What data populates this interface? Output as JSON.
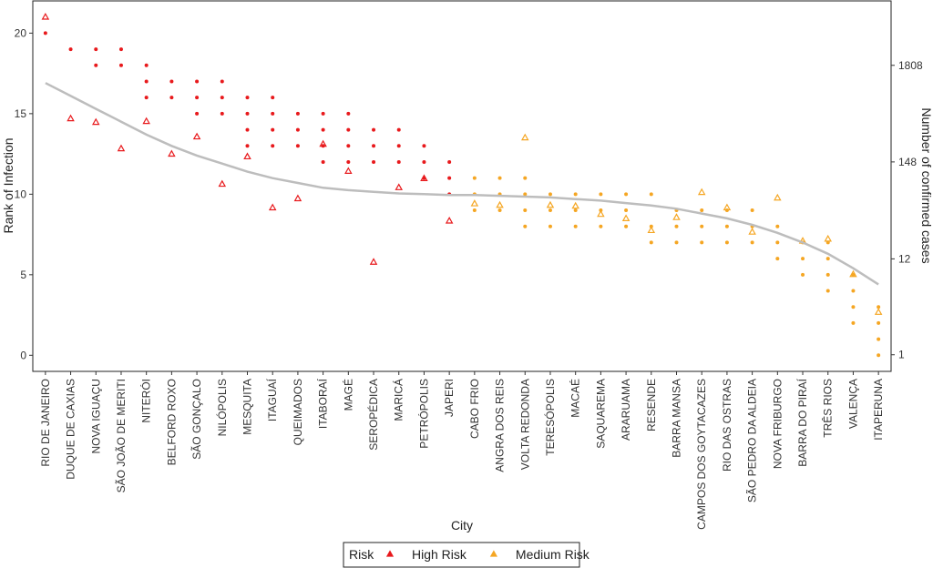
{
  "chart_data": {
    "type": "scatter",
    "x_label": "City",
    "y_label": "Rank of Infection",
    "y2_label": "Number of confirmed cases",
    "legend_title": "Risk",
    "ylim": [
      -1,
      22
    ],
    "yticks": [
      0,
      5,
      10,
      15,
      20
    ],
    "y2lim": [
      0.65,
      9600
    ],
    "y2ticks": [
      1,
      12,
      148,
      1808
    ],
    "y2_log": true,
    "legend_position": "bottom",
    "series": [
      {
        "name": "High Risk",
        "color": "#e8191c",
        "categories": [
          "RIO DE JANEIRO",
          "DUQUE DE CAXIAS",
          "NOVA IGUAÇU",
          "SÃO JOÃO DE MERITI",
          "NITERÓI",
          "BELFORD ROXO",
          "SÃO GONÇALO",
          "NILÓPOLIS",
          "MESQUITA",
          "ITAGUAÍ",
          "QUEIMADOS",
          "ITABORAÍ",
          "MAGÉ",
          "SEROPÉDICA",
          "MARICÁ",
          "PETRÓPOLIS",
          "JAPERI"
        ],
        "ranks": [
          [
            20
          ],
          [
            19
          ],
          [
            19,
            18
          ],
          [
            19,
            18
          ],
          [
            18,
            17,
            16
          ],
          [
            17,
            16
          ],
          [
            17,
            16,
            15
          ],
          [
            17,
            16,
            15
          ],
          [
            16,
            15,
            14,
            13
          ],
          [
            16,
            15,
            14,
            13
          ],
          [
            15,
            14,
            13
          ],
          [
            15,
            14,
            13,
            12
          ],
          [
            15,
            14,
            13,
            12
          ],
          [
            14,
            13,
            12
          ],
          [
            14,
            13,
            12
          ],
          [
            13,
            12,
            11
          ],
          [
            12,
            11,
            10
          ]
        ],
        "cases": [
          6300,
          453,
          412,
          208,
          422,
          181,
          283,
          83,
          169,
          45,
          57,
          234,
          116,
          11,
          76,
          96,
          32
        ]
      },
      {
        "name": "Medium Risk",
        "color": "#f5a623",
        "categories": [
          "CABO FRIO",
          "ANGRA DOS REIS",
          "VOLTA REDONDA",
          "TERESÓPOLIS",
          "MACAÉ",
          "SAQUAREMA",
          "ARARUAMA",
          "RESENDE",
          "BARRA MANSA",
          "CAMPOS DOS GOYTACAZES",
          "RIO DAS OSTRAS",
          "SÃO PEDRO DA ALDEIA",
          "NOVA FRIBURGO",
          "BARRA DO PIRAÍ",
          "TRÊS RIOS",
          "VALENÇA",
          "ITAPERUNA"
        ],
        "ranks": [
          [
            11,
            10,
            9
          ],
          [
            11,
            10,
            9
          ],
          [
            11,
            10,
            9,
            8
          ],
          [
            10,
            9,
            8
          ],
          [
            10,
            9,
            8
          ],
          [
            10,
            9,
            8
          ],
          [
            10,
            9,
            8
          ],
          [
            10,
            8,
            7
          ],
          [
            9,
            8,
            7
          ],
          [
            9,
            8,
            7
          ],
          [
            9,
            8,
            7
          ],
          [
            9,
            8,
            7
          ],
          [
            8,
            7,
            6
          ],
          [
            7,
            6,
            5
          ],
          [
            7,
            6,
            5,
            4
          ],
          [
            5,
            4,
            3,
            2
          ],
          [
            3,
            2,
            1,
            0
          ]
        ],
        "cases": [
          50,
          48,
          276,
          48,
          47,
          38,
          34,
          25,
          35,
          67,
          45,
          24,
          58,
          19,
          20,
          8,
          3
        ]
      }
    ],
    "trend": {
      "color": "#bdbdbd",
      "values": [
        16.9,
        16.1,
        15.3,
        14.5,
        13.7,
        13.0,
        12.4,
        11.9,
        11.4,
        11.0,
        10.7,
        10.4,
        10.25,
        10.15,
        10.05,
        10.0,
        9.95,
        9.95,
        9.9,
        9.85,
        9.8,
        9.7,
        9.6,
        9.45,
        9.3,
        9.1,
        8.8,
        8.5,
        8.1,
        7.6,
        7.0,
        6.3,
        5.4,
        4.4
      ]
    }
  }
}
